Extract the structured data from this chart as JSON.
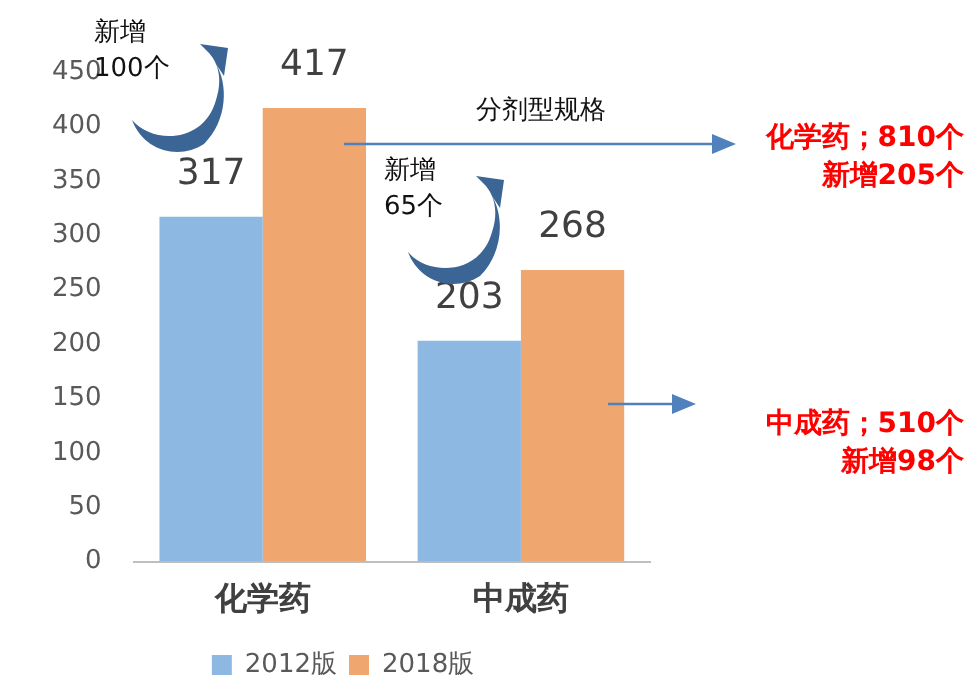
{
  "chart_data": {
    "type": "bar",
    "categories": [
      "化学药",
      "中成药"
    ],
    "series": [
      {
        "name": "2012版",
        "color": "#8db8e2",
        "values": [
          317,
          203
        ]
      },
      {
        "name": "2018版",
        "color": "#f0a66f",
        "values": [
          417,
          268
        ]
      }
    ],
    "ylim": [
      0,
      450
    ],
    "yticks": [
      0,
      50,
      100,
      150,
      200,
      250,
      300,
      350,
      400,
      450
    ],
    "grid": false,
    "legend": "bottom",
    "data_labels": true,
    "annotations": [
      "新增",
      "100个",
      "分剂型规格",
      "化学药；810个",
      "新增205个",
      "新增",
      "65个",
      "中成药；510个",
      "新增98个"
    ]
  }
}
